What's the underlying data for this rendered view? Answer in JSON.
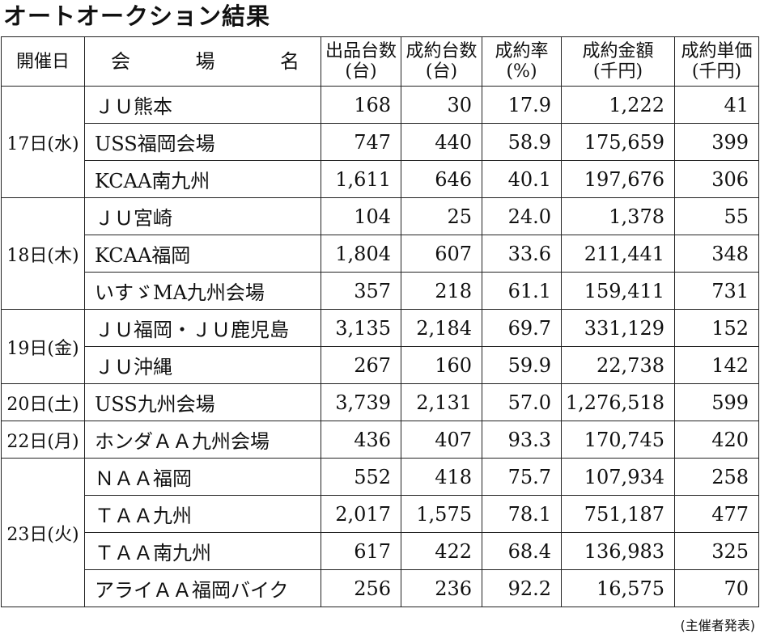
{
  "title": "オートオークション結果",
  "headers": {
    "date": "開催日",
    "venue": [
      "会",
      "場",
      "名"
    ],
    "listed": [
      "出品台数",
      "(台)"
    ],
    "sold": [
      "成約台数",
      "(台)"
    ],
    "rate": [
      "成約率",
      "(%)"
    ],
    "amount": [
      "成約金額",
      "(千円)"
    ],
    "unit": [
      "成約単価",
      "(千円)"
    ]
  },
  "groups": [
    {
      "date": "17日(水)",
      "rows": [
        {
          "venue": "ＪＵ熊本",
          "listed": "168",
          "sold": "30",
          "rate": "17.9",
          "amount": "1,222",
          "unit": "41"
        },
        {
          "venue": "USS福岡会場",
          "listed": "747",
          "sold": "440",
          "rate": "58.9",
          "amount": "175,659",
          "unit": "399"
        },
        {
          "venue": "KCAA南九州",
          "listed": "1,611",
          "sold": "646",
          "rate": "40.1",
          "amount": "197,676",
          "unit": "306"
        }
      ]
    },
    {
      "date": "18日(木)",
      "rows": [
        {
          "venue": "ＪＵ宮崎",
          "listed": "104",
          "sold": "25",
          "rate": "24.0",
          "amount": "1,378",
          "unit": "55"
        },
        {
          "venue": "KCAA福岡",
          "listed": "1,804",
          "sold": "607",
          "rate": "33.6",
          "amount": "211,441",
          "unit": "348"
        },
        {
          "venue": "いすゞMA九州会場",
          "listed": "357",
          "sold": "218",
          "rate": "61.1",
          "amount": "159,411",
          "unit": "731"
        }
      ]
    },
    {
      "date": "19日(金)",
      "rows": [
        {
          "venue": "ＪＵ福岡・ＪＵ鹿児島",
          "listed": "3,135",
          "sold": "2,184",
          "rate": "69.7",
          "amount": "331,129",
          "unit": "152"
        },
        {
          "venue": "ＪＵ沖縄",
          "listed": "267",
          "sold": "160",
          "rate": "59.9",
          "amount": "22,738",
          "unit": "142"
        }
      ]
    },
    {
      "date": "20日(土)",
      "rows": [
        {
          "venue": "USS九州会場",
          "listed": "3,739",
          "sold": "2,131",
          "rate": "57.0",
          "amount": "1,276,518",
          "unit": "599"
        }
      ]
    },
    {
      "date": "22日(月)",
      "rows": [
        {
          "venue": "ホンダＡＡ九州会場",
          "listed": "436",
          "sold": "407",
          "rate": "93.3",
          "amount": "170,745",
          "unit": "420"
        }
      ]
    },
    {
      "date": "23日(火)",
      "rows": [
        {
          "venue": "ＮＡＡ福岡",
          "listed": "552",
          "sold": "418",
          "rate": "75.7",
          "amount": "107,934",
          "unit": "258"
        },
        {
          "venue": "ＴＡＡ九州",
          "listed": "2,017",
          "sold": "1,575",
          "rate": "78.1",
          "amount": "751,187",
          "unit": "477"
        },
        {
          "venue": "ＴＡＡ南九州",
          "listed": "617",
          "sold": "422",
          "rate": "68.4",
          "amount": "136,983",
          "unit": "325"
        },
        {
          "venue": "アライＡＡ福岡バイク",
          "listed": "256",
          "sold": "236",
          "rate": "92.2",
          "amount": "16,575",
          "unit": "70"
        }
      ]
    }
  ],
  "footer_note": "(主催者発表)"
}
